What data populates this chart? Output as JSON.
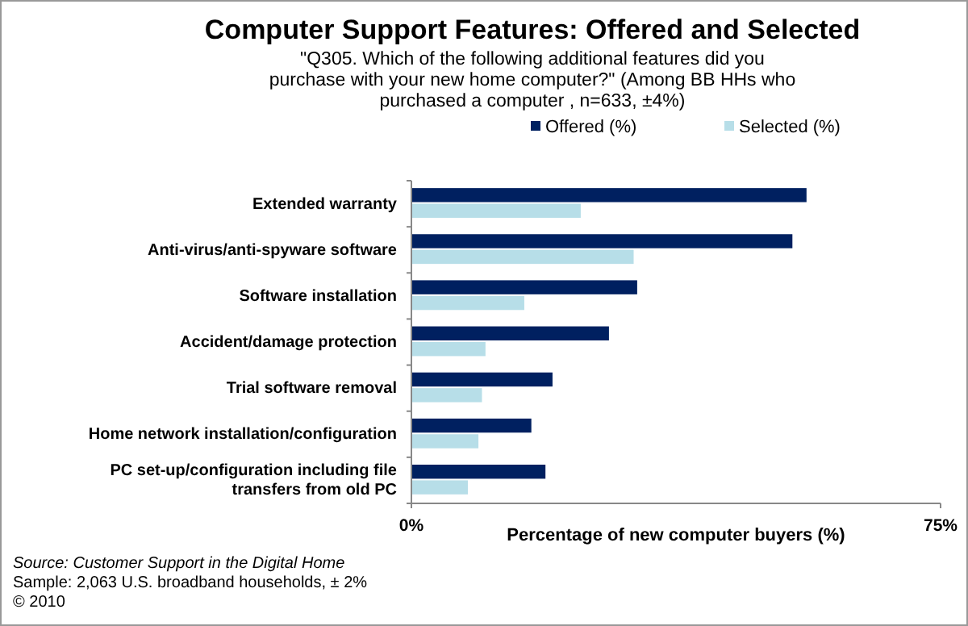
{
  "chart_data": {
    "type": "bar",
    "orientation": "horizontal",
    "title": "Computer Support Features: Offered and Selected",
    "subtitle": "\"Q305. Which of the following additional features did you purchase with your new home computer?\" (Among BB HHs who purchased a computer , n=633, ±4%)",
    "xlabel": "Percentage of new computer buyers (%)",
    "categories": [
      "Extended warranty",
      "Anti-virus/anti-spyware software",
      "Software installation",
      "Accident/damage protection",
      "Trial software removal",
      "Home network installation/configuration",
      "PC set-up/configuration including file transfers from old PC"
    ],
    "series": [
      {
        "name": "Offered (%)",
        "color": "#002060",
        "values": [
          56,
          54,
          32,
          28,
          20,
          17,
          19
        ]
      },
      {
        "name": "Selected (%)",
        "color": "#b7dee8",
        "values": [
          24,
          31.5,
          16,
          10.5,
          10,
          9.5,
          8
        ]
      }
    ],
    "xlim": [
      0,
      75
    ],
    "xticks": [
      {
        "value": 0,
        "label": "0%"
      },
      {
        "value": 75,
        "label": "75%"
      }
    ],
    "legend": "top",
    "grid": false,
    "annotations": [
      "Source:  Customer Support in the Digital Home",
      "Sample: 2,063 U.S. broadband households, ± 2%",
      "© 2010"
    ]
  }
}
